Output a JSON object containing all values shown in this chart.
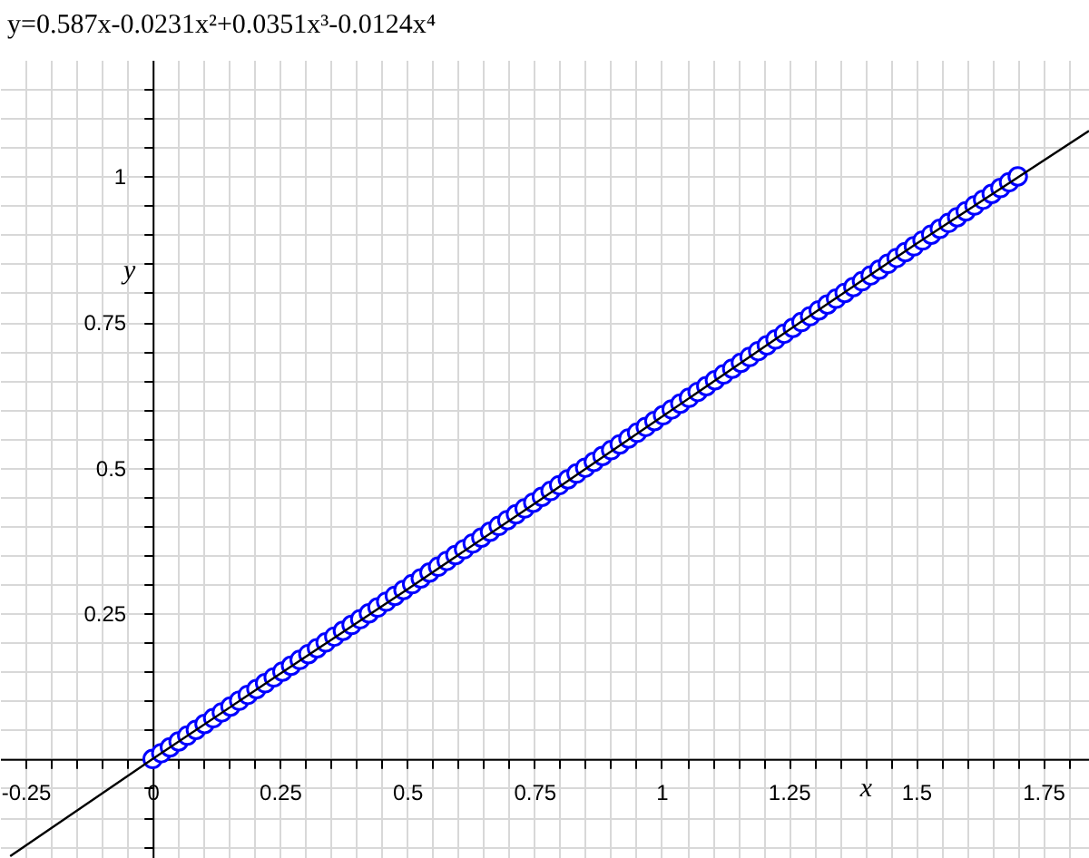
{
  "chart_data": {
    "type": "scatter",
    "title": "y=0.587x-0.0231x²+0.0351x³-0.0124x⁴",
    "xlabel": "x",
    "ylabel": "y",
    "xlim": [
      -0.3,
      1.84
    ],
    "ylim": [
      -0.17,
      1.2
    ],
    "xticks": [
      -0.25,
      {
        "value": -0.2,
        "label": null
      },
      {
        "value": -0.15,
        "label": null
      },
      {
        "value": -0.1,
        "label": null
      },
      {
        "value": -0.05,
        "label": null
      },
      0,
      {
        "value": 0.05,
        "label": null
      },
      {
        "value": 0.1,
        "label": null
      },
      {
        "value": 0.15,
        "label": null
      },
      {
        "value": 0.2,
        "label": null
      },
      0.25,
      {
        "value": 0.3,
        "label": null
      },
      {
        "value": 0.35,
        "label": null
      },
      {
        "value": 0.4,
        "label": null
      },
      {
        "value": 0.45,
        "label": null
      },
      0.5,
      {
        "value": 0.55,
        "label": null
      },
      {
        "value": 0.6,
        "label": null
      },
      {
        "value": 0.65,
        "label": null
      },
      {
        "value": 0.7,
        "label": null
      },
      0.75,
      {
        "value": 0.8,
        "label": null
      },
      {
        "value": 0.85,
        "label": null
      },
      {
        "value": 0.9,
        "label": null
      },
      {
        "value": 0.95,
        "label": null
      },
      1,
      {
        "value": 1.05,
        "label": null
      },
      {
        "value": 1.1,
        "label": null
      },
      {
        "value": 1.15,
        "label": null
      },
      {
        "value": 1.2,
        "label": null
      },
      1.25,
      {
        "value": 1.3,
        "label": null
      },
      {
        "value": 1.35,
        "label": null
      },
      {
        "value": 1.4,
        "label": null
      },
      {
        "value": 1.45,
        "label": null
      },
      1.5,
      {
        "value": 1.55,
        "label": null
      },
      {
        "value": 1.6,
        "label": null
      },
      {
        "value": 1.65,
        "label": null
      },
      {
        "value": 1.7,
        "label": null
      },
      1.75,
      {
        "value": 1.8,
        "label": null
      }
    ],
    "yticks": [
      {
        "value": -0.15,
        "label": null
      },
      {
        "value": -0.1,
        "label": null
      },
      {
        "value": -0.05,
        "label": null
      },
      {
        "value": 0,
        "label": null
      },
      {
        "value": 0.05,
        "label": null
      },
      {
        "value": 0.1,
        "label": null
      },
      {
        "value": 0.15,
        "label": null
      },
      {
        "value": 0.2,
        "label": null
      },
      0.25,
      {
        "value": 0.3,
        "label": null
      },
      {
        "value": 0.35,
        "label": null
      },
      {
        "value": 0.4,
        "label": null
      },
      {
        "value": 0.45,
        "label": null
      },
      0.5,
      {
        "value": 0.55,
        "label": null
      },
      {
        "value": 0.6,
        "label": null
      },
      {
        "value": 0.65,
        "label": null
      },
      {
        "value": 0.7,
        "label": null
      },
      0.75,
      {
        "value": 0.8,
        "label": null
      },
      {
        "value": 0.85,
        "label": null
      },
      {
        "value": 0.9,
        "label": null
      },
      {
        "value": 0.95,
        "label": null
      },
      1,
      {
        "value": 1.05,
        "label": null
      },
      {
        "value": 1.1,
        "label": null
      },
      {
        "value": 1.15,
        "label": null
      }
    ],
    "grid": true,
    "line_style": "solid",
    "series": [
      {
        "color": "#0000ff",
        "marker": "circle",
        "x": [
          0,
          0.017,
          0.034,
          0.051,
          0.068,
          0.085,
          0.102,
          0.119,
          0.136,
          0.153,
          0.17,
          0.187,
          0.204,
          0.221,
          0.238,
          0.255,
          0.272,
          0.289,
          0.306,
          0.323,
          0.34,
          0.357,
          0.374,
          0.391,
          0.408,
          0.425,
          0.442,
          0.459,
          0.476,
          0.493,
          0.51,
          0.527,
          0.544,
          0.561,
          0.578,
          0.595,
          0.612,
          0.629,
          0.646,
          0.663,
          0.68,
          0.697,
          0.714,
          0.731,
          0.748,
          0.765,
          0.782,
          0.799,
          0.816,
          0.833,
          0.85,
          0.867,
          0.884,
          0.901,
          0.918,
          0.935,
          0.952,
          0.969,
          0.986,
          1.003,
          1.02,
          1.037,
          1.054,
          1.071,
          1.088,
          1.105,
          1.122,
          1.139,
          1.156,
          1.173,
          1.19,
          1.207,
          1.224,
          1.241,
          1.258,
          1.275,
          1.292,
          1.309,
          1.326,
          1.343,
          1.36,
          1.377,
          1.394,
          1.411,
          1.428,
          1.445,
          1.462,
          1.479,
          1.496,
          1.513,
          1.53,
          1.547,
          1.564,
          1.581,
          1.598,
          1.615,
          1.632,
          1.649,
          1.666,
          1.683,
          1.7
        ],
        "values": [
          0,
          0.01,
          0.02,
          0.03,
          0.04,
          0.05,
          0.06,
          0.07,
          0.08,
          0.09,
          0.1,
          0.11,
          0.12,
          0.13,
          0.14,
          0.15,
          0.16,
          0.17,
          0.18,
          0.19,
          0.2,
          0.21,
          0.22,
          0.23,
          0.24,
          0.25,
          0.26,
          0.27,
          0.28,
          0.29,
          0.3,
          0.31,
          0.32,
          0.33,
          0.34,
          0.35,
          0.36,
          0.37,
          0.38,
          0.39,
          0.4,
          0.41,
          0.42,
          0.43,
          0.44,
          0.45,
          0.46,
          0.47,
          0.48,
          0.49,
          0.5,
          0.51,
          0.52,
          0.53,
          0.54,
          0.55,
          0.56,
          0.57,
          0.58,
          0.59,
          0.6,
          0.61,
          0.62,
          0.63,
          0.64,
          0.65,
          0.66,
          0.67,
          0.68,
          0.69,
          0.7,
          0.71,
          0.72,
          0.73,
          0.74,
          0.75,
          0.76,
          0.77,
          0.78,
          0.79,
          0.8,
          0.81,
          0.82,
          0.83,
          0.84,
          0.85,
          0.86,
          0.87,
          0.88,
          0.89,
          0.9,
          0.91,
          0.92,
          0.93,
          0.94,
          0.95,
          0.96,
          0.97,
          0.98,
          0.99,
          1
        ]
      },
      {
        "type": "line",
        "color": "#000000",
        "x": [
          -0.28,
          0,
          0.25,
          0.5,
          0.75,
          1,
          1.25,
          1.5,
          1.84
        ],
        "values": [
          -0.167,
          0,
          0.146,
          0.291,
          0.438,
          0.587,
          0.736,
          0.884,
          1.078
        ]
      }
    ]
  }
}
